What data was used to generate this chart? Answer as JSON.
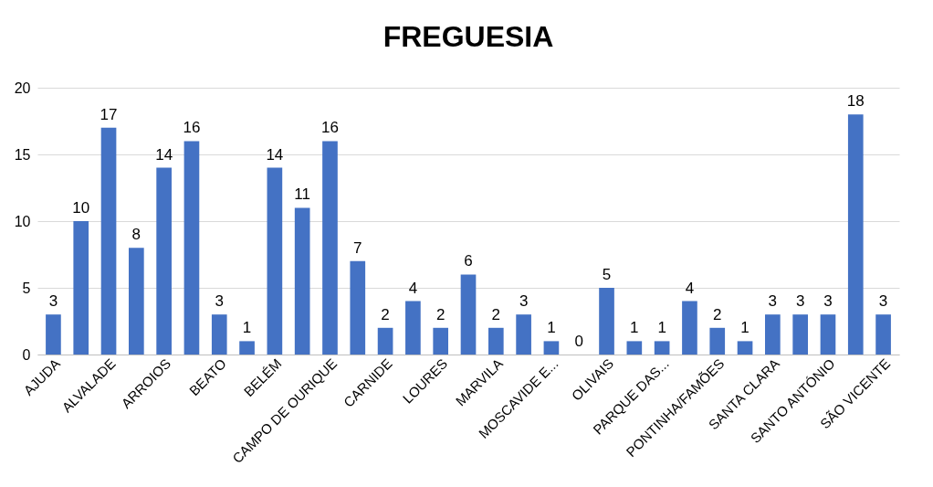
{
  "chart_data": {
    "type": "bar",
    "title": "FREGUESIA",
    "categories": [
      "AJUDA",
      null,
      "ALVALADE",
      null,
      "ARROIOS",
      null,
      "BEATO",
      null,
      "BELÉM",
      null,
      "CAMPO DE OURIQUE",
      null,
      "CARNIDE",
      null,
      "LOURES",
      null,
      "MARVILA",
      null,
      "MOSCAVIDE E...",
      null,
      "OLIVAIS",
      null,
      "PARQUE DAS...",
      null,
      "PONTINHA/FAMÕES",
      null,
      "SANTA CLARA",
      null,
      "SANTO ANTÓNIO",
      null,
      "SÃO VICENTE"
    ],
    "values": [
      3,
      10,
      17,
      8,
      14,
      16,
      3,
      1,
      14,
      11,
      16,
      7,
      2,
      4,
      2,
      6,
      2,
      3,
      1,
      0,
      5,
      1,
      1,
      4,
      2,
      1,
      3,
      3,
      3,
      18,
      3
    ],
    "color": "#4472c4",
    "ylim": [
      0,
      20
    ],
    "yticks": [
      0,
      5,
      10,
      15,
      20
    ],
    "grid": "y",
    "data_labels": true
  }
}
